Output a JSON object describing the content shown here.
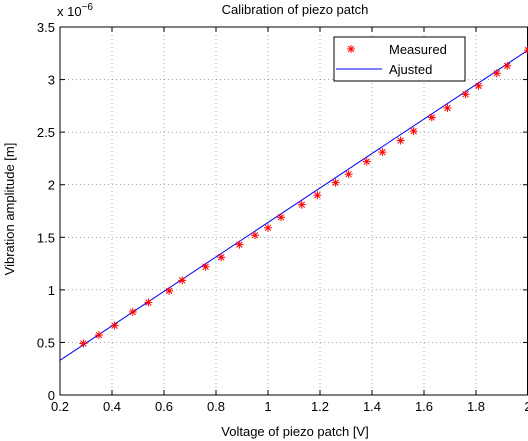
{
  "chart_data": {
    "type": "scatter",
    "title": "Calibration of piezo patch",
    "xlabel": "Voltage of piezo patch [V]",
    "ylabel": "Vibration amplitude [m]",
    "y_multiplier_label": "x 10",
    "y_multiplier_exponent": "−6",
    "xlim": [
      0.2,
      2.0
    ],
    "ylim": [
      0,
      3.5
    ],
    "x_ticks": [
      0.2,
      0.4,
      0.6,
      0.8,
      1.0,
      1.2,
      1.4,
      1.6,
      1.8,
      2.0
    ],
    "x_tick_labels": [
      "0.2",
      "0.4",
      "0.6",
      "0.8",
      "1",
      "1.2",
      "1.4",
      "1.6",
      "1.8",
      "2"
    ],
    "y_ticks": [
      0,
      0.5,
      1.0,
      1.5,
      2.0,
      2.5,
      3.0,
      3.5
    ],
    "y_tick_labels": [
      "0",
      "0.5",
      "1",
      "1.5",
      "2",
      "2.5",
      "3",
      "3.5"
    ],
    "grid": true,
    "legend_position": "top-right",
    "series": [
      {
        "name": "Measured",
        "kind": "scatter",
        "marker": "asterisk",
        "color": "#ff0000",
        "x": [
          0.29,
          0.35,
          0.41,
          0.48,
          0.54,
          0.62,
          0.67,
          0.76,
          0.82,
          0.89,
          0.95,
          1.0,
          1.05,
          1.13,
          1.19,
          1.26,
          1.31,
          1.38,
          1.44,
          1.51,
          1.56,
          1.63,
          1.69,
          1.76,
          1.81,
          1.88,
          1.92,
          2.0
        ],
        "y": [
          0.49,
          0.57,
          0.66,
          0.79,
          0.88,
          0.99,
          1.09,
          1.22,
          1.31,
          1.43,
          1.52,
          1.59,
          1.69,
          1.81,
          1.9,
          2.02,
          2.1,
          2.22,
          2.31,
          2.42,
          2.51,
          2.64,
          2.73,
          2.86,
          2.94,
          3.06,
          3.13,
          3.28
        ]
      },
      {
        "name": "Ajusted",
        "kind": "line",
        "color": "#0000ff",
        "x": [
          0.2,
          2.0
        ],
        "y": [
          0.33,
          3.28
        ]
      }
    ]
  }
}
